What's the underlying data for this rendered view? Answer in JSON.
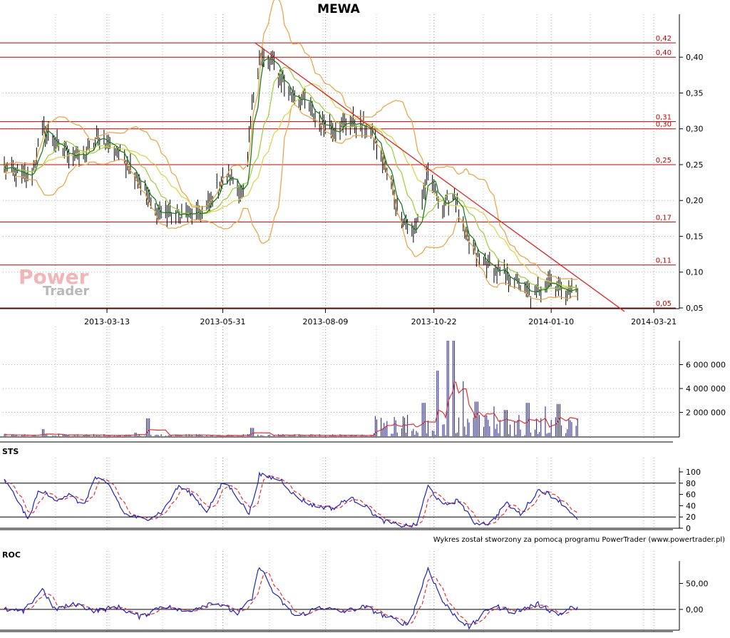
{
  "chart_data": {
    "title": "MEWA",
    "watermark": {
      "line1": "Power",
      "line2": "Trader"
    },
    "credit": "Wykres został stworzony za pomocą programu PowerTrader (www.powertrader.pl)",
    "colors": {
      "price_bar": "#000000",
      "sma_short": "#1a7f1a",
      "sma_mid": "#9acd32",
      "sma_long": "#e0d040",
      "bollinger": "#e8a040",
      "hline": "#c00000",
      "trendline": "#e02020",
      "volume_bar": "#1a1a80",
      "volume_ma": "#e03030",
      "osc_main": "#2020c0",
      "osc_signal": "#e03030"
    },
    "x_axis": {
      "range": [
        "2013-01-01",
        "2014-04-05"
      ],
      "ticks": [
        "2013-03-13",
        "2013-05-31",
        "2013-08-09",
        "2013-10-22",
        "2014-01-10",
        "2014-03-21"
      ]
    },
    "price": {
      "type": "bar",
      "ylim": [
        0.05,
        0.44
      ],
      "yticks": [
        "0,05",
        "0,10",
        "0,15",
        "0,20",
        "0,25",
        "0,30",
        "0,35",
        "0,40"
      ],
      "grid": true,
      "legend": "none",
      "hlines": [
        {
          "value": 0.42,
          "label": "0,42"
        },
        {
          "value": 0.4,
          "label": "0,40"
        },
        {
          "value": 0.31,
          "label": "0,31"
        },
        {
          "value": 0.3,
          "label": "0,30"
        },
        {
          "value": 0.25,
          "label": "0,25"
        },
        {
          "value": 0.17,
          "label": "0,17"
        },
        {
          "value": 0.11,
          "label": "0,11"
        },
        {
          "value": 0.05,
          "label": "0,05"
        }
      ],
      "trendline": {
        "from": [
          "2013-06-22",
          0.42
        ],
        "to": [
          "2014-03-01",
          0.045
        ]
      },
      "key_points": [
        [
          "2013-01-02",
          0.245
        ],
        [
          "2013-01-20",
          0.23
        ],
        [
          "2013-01-28",
          0.3
        ],
        [
          "2013-02-10",
          0.27
        ],
        [
          "2013-02-25",
          0.26
        ],
        [
          "2013-03-08",
          0.29
        ],
        [
          "2013-03-20",
          0.27
        ],
        [
          "2013-04-01",
          0.24
        ],
        [
          "2013-04-15",
          0.185
        ],
        [
          "2013-05-01",
          0.18
        ],
        [
          "2013-05-18",
          0.18
        ],
        [
          "2013-05-31",
          0.23
        ],
        [
          "2013-06-08",
          0.23
        ],
        [
          "2013-06-15",
          0.205
        ],
        [
          "2013-06-20",
          0.33
        ],
        [
          "2013-06-25",
          0.4
        ],
        [
          "2013-07-05",
          0.39
        ],
        [
          "2013-07-15",
          0.35
        ],
        [
          "2013-07-25",
          0.34
        ],
        [
          "2013-08-05",
          0.31
        ],
        [
          "2013-08-15",
          0.3
        ],
        [
          "2013-08-25",
          0.31
        ],
        [
          "2013-09-08",
          0.3
        ],
        [
          "2013-09-18",
          0.25
        ],
        [
          "2013-09-28",
          0.185
        ],
        [
          "2013-10-08",
          0.15
        ],
        [
          "2013-10-18",
          0.235
        ],
        [
          "2013-10-28",
          0.19
        ],
        [
          "2013-11-05",
          0.21
        ],
        [
          "2013-11-12",
          0.15
        ],
        [
          "2013-11-22",
          0.12
        ],
        [
          "2013-12-05",
          0.1
        ],
        [
          "2013-12-18",
          0.085
        ],
        [
          "2013-12-28",
          0.065
        ],
        [
          "2014-01-08",
          0.09
        ],
        [
          "2014-01-18",
          0.075
        ],
        [
          "2014-01-28",
          0.075
        ]
      ]
    },
    "volume": {
      "type": "bar",
      "ylim": [
        0,
        8000000
      ],
      "yticks": [
        "2 000 000",
        "4 000 000",
        "6 000 000"
      ],
      "grid": true,
      "spikes": [
        [
          "2013-01-28",
          600000
        ],
        [
          "2013-02-10",
          200000
        ],
        [
          "2013-04-01",
          300000
        ],
        [
          "2013-04-10",
          1500000
        ],
        [
          "2013-06-20",
          700000
        ],
        [
          "2013-09-15",
          1200000
        ],
        [
          "2013-10-05",
          1800000
        ],
        [
          "2013-10-15",
          2800000
        ],
        [
          "2013-10-25",
          5500000
        ],
        [
          "2013-11-01",
          8000000
        ],
        [
          "2013-11-04",
          8000000
        ],
        [
          "2013-11-10",
          4600000
        ],
        [
          "2013-11-20",
          2900000
        ],
        [
          "2013-12-01",
          2500000
        ],
        [
          "2013-12-10",
          2200000
        ],
        [
          "2013-12-25",
          2800000
        ],
        [
          "2014-01-05",
          2500000
        ],
        [
          "2014-01-15",
          2700000
        ],
        [
          "2014-01-25",
          1200000
        ]
      ]
    },
    "sts": {
      "type": "line",
      "label": "STS",
      "ylim": [
        0,
        100
      ],
      "yticks": [
        "0",
        "20",
        "40",
        "60",
        "80",
        "100"
      ],
      "hlines": [
        20,
        80
      ],
      "series_points": [
        [
          "2013-01-02",
          85
        ],
        [
          "2013-01-10",
          55
        ],
        [
          "2013-01-18",
          15
        ],
        [
          "2013-01-26",
          70
        ],
        [
          "2013-02-05",
          50
        ],
        [
          "2013-02-15",
          60
        ],
        [
          "2013-02-25",
          40
        ],
        [
          "2013-03-05",
          90
        ],
        [
          "2013-03-15",
          75
        ],
        [
          "2013-03-25",
          25
        ],
        [
          "2013-04-08",
          15
        ],
        [
          "2013-04-20",
          30
        ],
        [
          "2013-05-01",
          75
        ],
        [
          "2013-05-10",
          60
        ],
        [
          "2013-05-20",
          30
        ],
        [
          "2013-06-01",
          85
        ],
        [
          "2013-06-10",
          55
        ],
        [
          "2013-06-18",
          25
        ],
        [
          "2013-06-25",
          95
        ],
        [
          "2013-07-10",
          85
        ],
        [
          "2013-07-20",
          55
        ],
        [
          "2013-08-01",
          40
        ],
        [
          "2013-08-15",
          35
        ],
        [
          "2013-08-25",
          55
        ],
        [
          "2013-09-05",
          40
        ],
        [
          "2013-09-15",
          15
        ],
        [
          "2013-09-28",
          5
        ],
        [
          "2013-10-10",
          5
        ],
        [
          "2013-10-18",
          75
        ],
        [
          "2013-10-28",
          40
        ],
        [
          "2013-11-08",
          50
        ],
        [
          "2013-11-18",
          10
        ],
        [
          "2013-11-30",
          8
        ],
        [
          "2013-12-10",
          45
        ],
        [
          "2013-12-20",
          25
        ],
        [
          "2014-01-02",
          70
        ],
        [
          "2014-01-15",
          50
        ],
        [
          "2014-01-25",
          25
        ],
        [
          "2014-01-30",
          5
        ]
      ]
    },
    "roc": {
      "type": "line",
      "label": "ROC",
      "ylim": [
        -40,
        85
      ],
      "yticks": [
        "0,00",
        "50,00"
      ],
      "hlines": [
        0
      ],
      "series_points": [
        [
          "2013-01-02",
          0
        ],
        [
          "2013-01-15",
          -5
        ],
        [
          "2013-01-28",
          40
        ],
        [
          "2013-02-05",
          0
        ],
        [
          "2013-02-20",
          10
        ],
        [
          "2013-03-05",
          -3
        ],
        [
          "2013-03-20",
          5
        ],
        [
          "2013-04-05",
          -15
        ],
        [
          "2013-04-20",
          8
        ],
        [
          "2013-05-05",
          -5
        ],
        [
          "2013-05-25",
          15
        ],
        [
          "2013-06-10",
          -8
        ],
        [
          "2013-06-20",
          20
        ],
        [
          "2013-06-25",
          85
        ],
        [
          "2013-07-05",
          30
        ],
        [
          "2013-07-20",
          -15
        ],
        [
          "2013-08-05",
          5
        ],
        [
          "2013-08-20",
          -5
        ],
        [
          "2013-09-05",
          5
        ],
        [
          "2013-09-20",
          -15
        ],
        [
          "2013-10-05",
          -30
        ],
        [
          "2013-10-18",
          80
        ],
        [
          "2013-10-28",
          15
        ],
        [
          "2013-11-05",
          -10
        ],
        [
          "2013-11-15",
          -35
        ],
        [
          "2013-12-01",
          8
        ],
        [
          "2013-12-15",
          -5
        ],
        [
          "2014-01-01",
          10
        ],
        [
          "2014-01-15",
          -10
        ],
        [
          "2014-01-25",
          5
        ],
        [
          "2014-01-30",
          0
        ]
      ]
    }
  }
}
